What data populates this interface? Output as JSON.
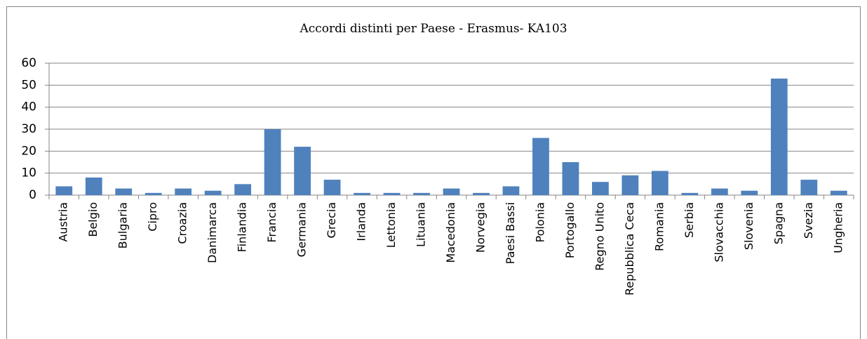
{
  "chart_data": {
    "type": "bar",
    "title": "Accordi distinti per Paese - Erasmus- KA103",
    "categories": [
      "Austria",
      "Belgio",
      "Bulgaria",
      "Cipro",
      "Croazia",
      "Danimarca",
      "Finlandia",
      "Francia",
      "Germania",
      "Grecia",
      "Irlanda",
      "Lettonia",
      "Lituania",
      "Macedonia",
      "Norvegia",
      "Paesi Bassi",
      "Polonia",
      "Portogallo",
      "Regno Unito",
      "Repubblica Ceca",
      "Romania",
      "Serbia",
      "Slovacchia",
      "Slovenia",
      "Spagna",
      "Svezia",
      "Ungheria"
    ],
    "values": [
      4,
      8,
      3,
      1,
      3,
      2,
      5,
      30,
      22,
      7,
      1,
      1,
      1,
      3,
      1,
      4,
      26,
      15,
      6,
      9,
      11,
      1,
      3,
      2,
      53,
      7,
      2
    ],
    "color": "#4f81bd",
    "ylim": [
      0,
      60
    ],
    "yticks": [
      0,
      10,
      20,
      30,
      40,
      50,
      60
    ],
    "grid": true
  }
}
